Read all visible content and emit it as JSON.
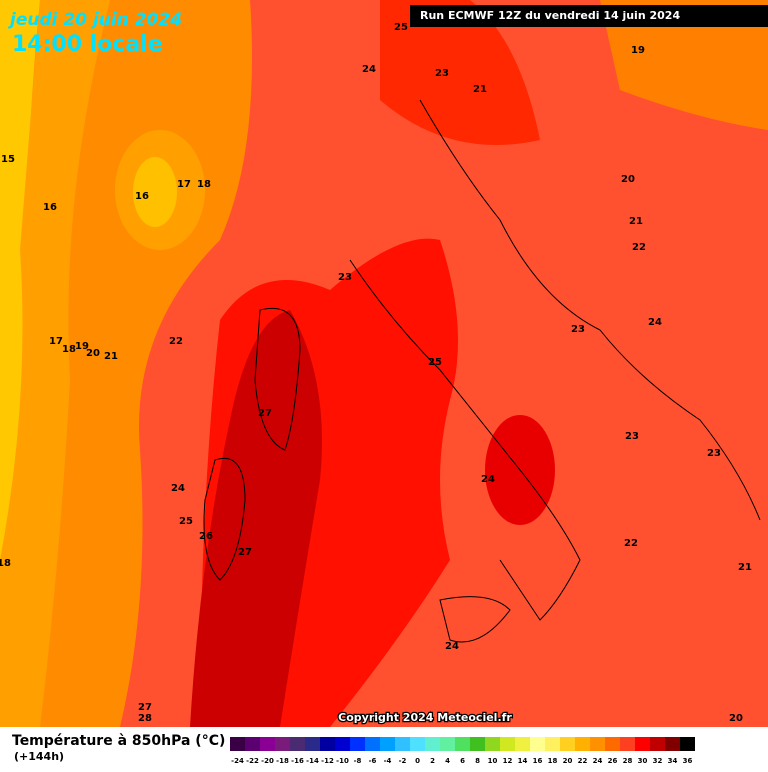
{
  "header": {
    "date": "jeudi 20 juin 2024",
    "time": "14:00 locale",
    "run": "Run ECMWF 12Z du vendredi 14 juin 2024"
  },
  "map": {
    "contour_labels": [
      25,
      24,
      23,
      21,
      19,
      15,
      16,
      16,
      17,
      18,
      20,
      21,
      22,
      23,
      17,
      18,
      19,
      20,
      21,
      22,
      24,
      23,
      25,
      27,
      23,
      23,
      24,
      24,
      25,
      26,
      27,
      22,
      21,
      18,
      24,
      27,
      28,
      20
    ]
  },
  "copyright": "Copyright 2024 Meteociel.fr",
  "legend": {
    "title": "Température à 850hPa (°C)",
    "lead_time": "(+144h)",
    "values": [
      -24,
      -22,
      -20,
      -18,
      -16,
      -14,
      -12,
      -10,
      -8,
      -6,
      -4,
      -2,
      0,
      2,
      4,
      6,
      8,
      10,
      12,
      14,
      16,
      18,
      20,
      22,
      24,
      26,
      28,
      30,
      32,
      34,
      36
    ],
    "colors": [
      "#3a0046",
      "#5a0070",
      "#8a0094",
      "#7a1a7a",
      "#4a2a70",
      "#2a2a8a",
      "#0000a0",
      "#0000d0",
      "#0030ff",
      "#0070ff",
      "#00a0ff",
      "#30c0ff",
      "#50e0ff",
      "#60f0d0",
      "#60f0a0",
      "#50e060",
      "#40c020",
      "#90d820",
      "#d0e820",
      "#f0f040",
      "#ffff90",
      "#fff060",
      "#ffd020",
      "#ffb000",
      "#ff9000",
      "#ff6a00",
      "#ff4020",
      "#ff0000",
      "#c00000",
      "#800000",
      "#000000"
    ]
  }
}
